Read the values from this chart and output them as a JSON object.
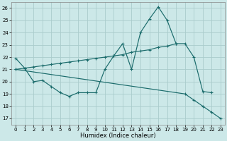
{
  "xlabel": "Humidex (Indice chaleur)",
  "background_color": "#cce8e8",
  "grid_color": "#aacccc",
  "line_color": "#1a6b6b",
  "xlim": [
    -0.5,
    23.5
  ],
  "ylim": [
    16.5,
    26.5
  ],
  "xticks": [
    0,
    1,
    2,
    3,
    4,
    5,
    6,
    7,
    8,
    9,
    10,
    11,
    12,
    13,
    14,
    15,
    16,
    17,
    18,
    19,
    20,
    21,
    22,
    23
  ],
  "yticks": [
    17,
    18,
    19,
    20,
    21,
    22,
    23,
    24,
    25,
    26
  ],
  "series": [
    {
      "x": [
        0,
        1,
        2,
        3,
        4,
        5,
        6,
        7,
        8,
        9,
        10,
        11,
        12,
        13,
        14,
        15,
        16,
        17,
        18,
        19,
        20,
        21,
        22
      ],
      "y": [
        21.9,
        21.1,
        20.0,
        20.1,
        19.6,
        19.1,
        18.8,
        19.1,
        19.1,
        19.1,
        21.0,
        22.1,
        23.1,
        21.0,
        24.0,
        25.1,
        26.1,
        25.0,
        23.1,
        23.1,
        22.0,
        19.2,
        19.1
      ]
    },
    {
      "x": [
        0,
        1,
        2,
        3,
        4,
        5,
        6,
        7,
        8,
        9,
        10,
        11,
        12,
        13,
        14,
        15,
        16,
        17,
        18
      ],
      "y": [
        21.0,
        21.1,
        21.2,
        21.3,
        21.4,
        21.5,
        21.6,
        21.7,
        21.8,
        21.9,
        22.0,
        22.1,
        22.2,
        22.4,
        22.5,
        22.6,
        22.8,
        22.9,
        23.1
      ]
    },
    {
      "x": [
        0,
        19,
        20,
        21,
        22,
        23
      ],
      "y": [
        21.0,
        19.0,
        18.5,
        18.0,
        17.5,
        17.0
      ]
    }
  ]
}
